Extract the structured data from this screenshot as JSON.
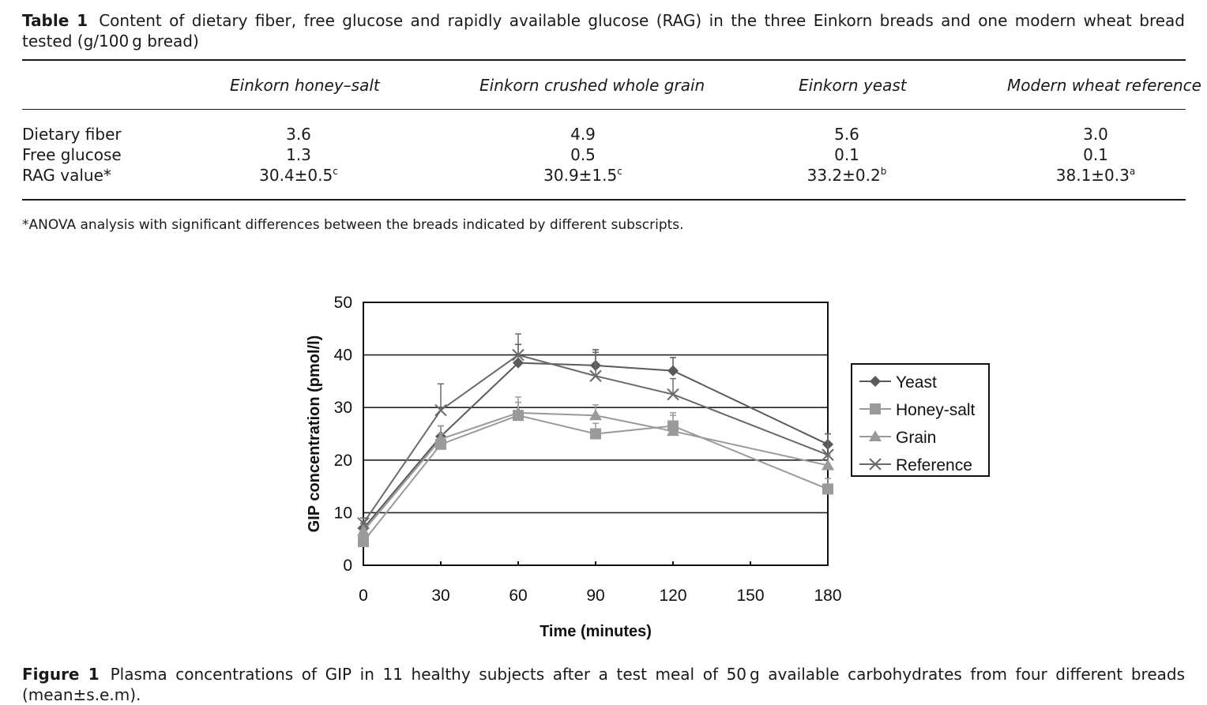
{
  "table": {
    "caption_label": "Table 1",
    "caption_text": "Content of dietary fiber, free glucose and rapidly available glucose (RAG) in the three Einkorn breads and one modern wheat bread tested (g/100 g bread)",
    "columns": [
      "Einkorn honey–salt",
      "Einkorn crushed whole grain",
      "Einkorn yeast",
      "Modern wheat reference"
    ],
    "rows": [
      {
        "label": "Dietary fiber",
        "values": [
          "3.6",
          "4.9",
          "5.6",
          "3.0"
        ],
        "sups": [
          "",
          "",
          "",
          ""
        ]
      },
      {
        "label": "Free glucose",
        "values": [
          "1.3",
          "0.5",
          "0.1",
          "0.1"
        ],
        "sups": [
          "",
          "",
          "",
          ""
        ]
      },
      {
        "label": "RAG value*",
        "values": [
          "30.4±0.5",
          "30.9±1.5",
          "33.2±0.2",
          "38.1±0.3"
        ],
        "sups": [
          "c",
          "c",
          "b",
          "a"
        ]
      }
    ],
    "footnote": "*ANOVA analysis with significant differences between the breads indicated by different subscripts."
  },
  "chart_data": {
    "type": "line",
    "xlabel": "Time (minutes)",
    "ylabel": "GIP concentration (pmol/l)",
    "x": [
      0,
      30,
      60,
      90,
      120,
      180
    ],
    "x_ticks": [
      0,
      30,
      60,
      90,
      120,
      150,
      180
    ],
    "y_ticks": [
      0,
      10,
      20,
      30,
      40,
      50
    ],
    "xlim": [
      0,
      180
    ],
    "ylim": [
      0,
      50
    ],
    "grid": "horizontal",
    "legend_position": "right",
    "series": [
      {
        "name": "Yeast",
        "marker": "diamond",
        "color": "#5a5a5a",
        "values": [
          7,
          24.5,
          38.5,
          38,
          37,
          23
        ],
        "err": [
          1,
          2,
          3.5,
          3,
          2.5,
          2
        ]
      },
      {
        "name": "Honey-salt",
        "marker": "square",
        "color": "#9a9a9a",
        "values": [
          4.5,
          23,
          28.5,
          25,
          26.5,
          14.5
        ],
        "err": [
          1,
          2,
          2.5,
          2,
          2.5,
          2
        ]
      },
      {
        "name": "Grain",
        "marker": "triangle",
        "color": "#9a9a9a",
        "values": [
          6.5,
          24,
          29,
          28.5,
          25.5,
          19
        ],
        "err": [
          1,
          2.5,
          3,
          2,
          3,
          2
        ]
      },
      {
        "name": "Reference",
        "marker": "x",
        "color": "#6a6a6a",
        "values": [
          8,
          29.5,
          40,
          36,
          32.5,
          21
        ],
        "err": [
          1,
          5,
          4,
          4.5,
          3,
          4
        ]
      }
    ]
  },
  "figure": {
    "caption_label": "Figure 1",
    "caption_text": "Plasma concentrations of GIP in 11 healthy subjects after a test meal of 50 g available carbohydrates from four different breads (mean±s.e.m)."
  }
}
